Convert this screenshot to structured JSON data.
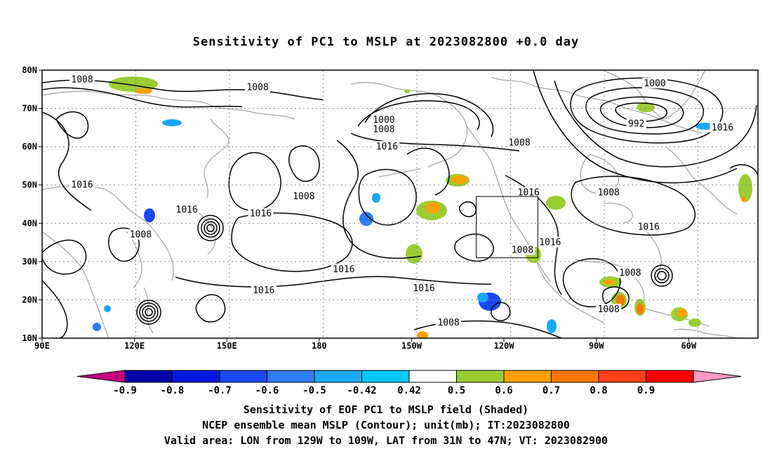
{
  "title": "Sensitivity of PC1 to MSLP at 2023082800 +0.0 day",
  "lat_labels": [
    "80N",
    "70N",
    "60N",
    "50N",
    "40N",
    "30N",
    "20N",
    "10N"
  ],
  "lon_labels": [
    "90E",
    "120E",
    "150E",
    "180",
    "150W",
    "120W",
    "90W",
    "60W"
  ],
  "colorbar": {
    "labels": [
      "-0.9",
      "-0.8",
      "-0.7",
      "-0.6",
      "-0.5",
      "-0.42",
      "0.42",
      "0.5",
      "0.6",
      "0.7",
      "0.8",
      "0.9"
    ],
    "colors": [
      "#c4007f",
      "#0000a8",
      "#0018e0",
      "#1a48f0",
      "#2e7cf4",
      "#1aa8f4",
      "#00c8f8",
      "#ffffff",
      "#9acd32",
      "#ffa000",
      "#ff7800",
      "#ff4018",
      "#ff0000",
      "#ff9ac4"
    ]
  },
  "contour_labels": [
    {
      "text": "1008",
      "lon": 103,
      "lat": 77.5
    },
    {
      "text": "1008",
      "lon": 160,
      "lat": 75.5
    },
    {
      "text": "1000",
      "lon": 201,
      "lat": 67
    },
    {
      "text": "1008",
      "lon": 201,
      "lat": 64.5
    },
    {
      "text": "1016",
      "lon": 202,
      "lat": 60
    },
    {
      "text": "1008",
      "lon": 245,
      "lat": 61
    },
    {
      "text": "1000",
      "lon": 289,
      "lat": 76.5
    },
    {
      "text": "992",
      "lon": 283,
      "lat": 66
    },
    {
      "text": "1016",
      "lon": 311,
      "lat": 65
    },
    {
      "text": "1016",
      "lon": 248,
      "lat": 48
    },
    {
      "text": "1008",
      "lon": 274,
      "lat": 48
    },
    {
      "text": "1016",
      "lon": 103,
      "lat": 50
    },
    {
      "text": "1008",
      "lon": 175,
      "lat": 47
    },
    {
      "text": "1016",
      "lon": 137,
      "lat": 43.5
    },
    {
      "text": "1016",
      "lon": 161,
      "lat": 42.5
    },
    {
      "text": "1008",
      "lon": 122,
      "lat": 37
    },
    {
      "text": "1016",
      "lon": 287,
      "lat": 39
    },
    {
      "text": "1016",
      "lon": 255,
      "lat": 35
    },
    {
      "text": "1008",
      "lon": 246,
      "lat": 33
    },
    {
      "text": "1016",
      "lon": 188,
      "lat": 28
    },
    {
      "text": "1008",
      "lon": 281,
      "lat": 27
    },
    {
      "text": "1016",
      "lon": 162,
      "lat": 22.5
    },
    {
      "text": "1016",
      "lon": 214,
      "lat": 23
    },
    {
      "text": "1008",
      "lon": 274,
      "lat": 17.5
    },
    {
      "text": "1008",
      "lon": 222,
      "lat": 14
    }
  ],
  "valid_area": {
    "lon_min": -129,
    "lon_max": -109,
    "lat_min": 31,
    "lat_max": 47
  },
  "caption": [
    "Sensitivity of EOF PC1 to MSLP field (Shaded)",
    "NCEP ensemble mean MSLP (Contour); unit(mb); IT:2023082800",
    "Valid area: LON from 129W to 109W, LAT from 31N to 47N; VT: 2023082900"
  ]
}
